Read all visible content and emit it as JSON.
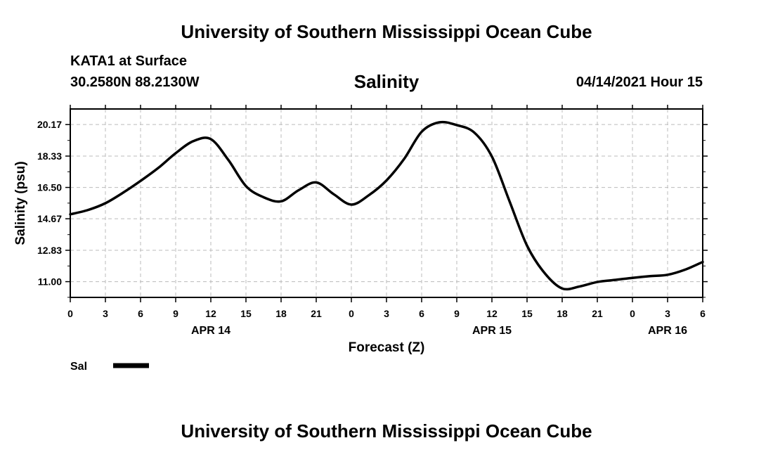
{
  "header": {
    "title": "University of Southern Mississippi Ocean Cube",
    "station": "KATA1 at Surface",
    "coordinates": "30.2580N  88.2130W",
    "variable": "Salinity",
    "timestamp": "04/14/2021 Hour 15"
  },
  "footer": {
    "title": "University of Southern Mississippi Ocean Cube"
  },
  "chart_data": {
    "type": "line",
    "title": "Salinity",
    "xlabel": "Forecast (Z)",
    "ylabel": "Salinity (psu)",
    "x_ticks": [
      "0",
      "3",
      "6",
      "9",
      "12",
      "15",
      "18",
      "21",
      "0",
      "3",
      "6",
      "9",
      "12",
      "15",
      "18",
      "21",
      "0",
      "3",
      "6"
    ],
    "x_date_labels": [
      {
        "label": "APR 14",
        "tick_index": 4
      },
      {
        "label": "APR 15",
        "tick_index": 12
      },
      {
        "label": "APR 16",
        "tick_index": 17
      }
    ],
    "y_ticks": [
      "11.00",
      "12.83",
      "14.67",
      "16.50",
      "18.33",
      "20.17"
    ],
    "ylim": [
      10.08,
      21.08
    ],
    "xlim": [
      0,
      54
    ],
    "grid": true,
    "legend": {
      "position": "bottom-left",
      "entries": [
        {
          "name": "Sal",
          "color": "#000000"
        }
      ]
    },
    "series": [
      {
        "name": "Sal",
        "color": "#000000",
        "x": [
          0,
          1.5,
          3,
          4.5,
          6,
          7.5,
          9,
          10.5,
          12,
          13.5,
          15,
          16.5,
          18,
          19.5,
          21,
          22.5,
          24,
          25.5,
          27,
          28.5,
          30,
          31.5,
          33,
          34.5,
          36,
          37.5,
          39,
          40.5,
          42,
          43.5,
          45,
          46.5,
          48,
          49.5,
          51,
          52.5,
          54
        ],
        "y": [
          14.93,
          15.18,
          15.58,
          16.19,
          16.88,
          17.63,
          18.5,
          19.2,
          19.32,
          18.1,
          16.58,
          15.93,
          15.69,
          16.34,
          16.79,
          16.1,
          15.5,
          16.05,
          16.91,
          18.16,
          19.75,
          20.3,
          20.14,
          19.7,
          18.3,
          15.7,
          13.1,
          11.5,
          10.6,
          10.72,
          10.98,
          11.1,
          11.22,
          11.32,
          11.4,
          11.7,
          12.15
        ]
      }
    ]
  }
}
